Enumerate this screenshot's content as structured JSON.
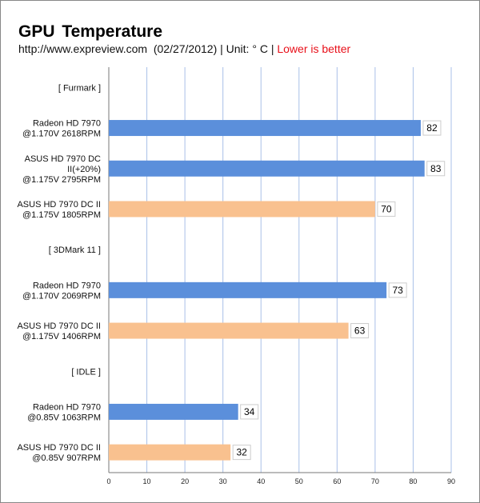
{
  "chart_data": {
    "type": "bar",
    "orientation": "horizontal",
    "title": "GPU  Temperature",
    "subtitle": "http://www.expreview.com  (02/27/2012) | Unit: ° C | ",
    "note": "Lower is better",
    "xlim": [
      0,
      90
    ],
    "xticks": [
      0,
      10,
      20,
      30,
      40,
      50,
      60,
      70,
      80,
      90
    ],
    "grid": true,
    "colors": {
      "blue": "#5b8fdb",
      "orange": "#f9c18f",
      "note": "#e8101a"
    },
    "rows": [
      {
        "label": [
          "[ Furmark ]"
        ],
        "group": true
      },
      {
        "label": [
          "Radeon HD 7970",
          "@1.170V 2618RPM"
        ],
        "value": 82,
        "color": "blue"
      },
      {
        "label": [
          "ASUS HD 7970 DC",
          "II(+20%)",
          "@1.175V 2795RPM"
        ],
        "value": 83,
        "color": "blue"
      },
      {
        "label": [
          "ASUS HD 7970 DC II",
          "@1.175V 1805RPM"
        ],
        "value": 70,
        "color": "orange"
      },
      {
        "label": [
          "[ 3DMark 11 ]"
        ],
        "group": true
      },
      {
        "label": [
          "Radeon HD 7970",
          "@1.170V 2069RPM"
        ],
        "value": 73,
        "color": "blue"
      },
      {
        "label": [
          "ASUS HD 7970 DC II",
          "@1.175V 1406RPM"
        ],
        "value": 63,
        "color": "orange"
      },
      {
        "label": [
          "[ IDLE ]"
        ],
        "group": true
      },
      {
        "label": [
          "Radeon HD 7970",
          "@0.85V 1063RPM"
        ],
        "value": 34,
        "color": "blue"
      },
      {
        "label": [
          "ASUS HD 7970 DC II",
          "@0.85V 907RPM"
        ],
        "value": 32,
        "color": "orange"
      }
    ]
  }
}
